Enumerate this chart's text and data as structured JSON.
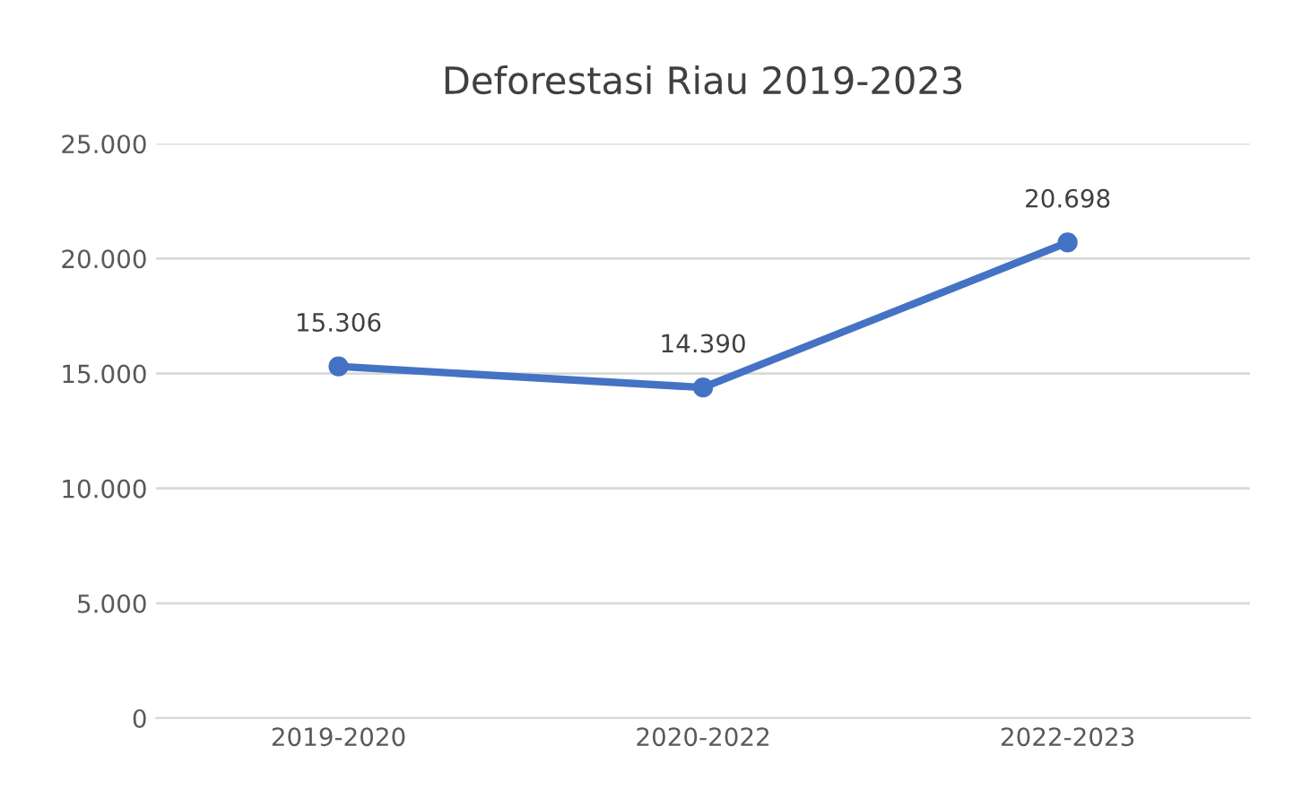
{
  "chart_data": {
    "type": "line",
    "title": "Deforestasi Riau 2019-2023",
    "categories": [
      "2019-2020",
      "2020-2022",
      "2022-2023"
    ],
    "series": [
      {
        "color": "#4472c4",
        "values": [
          15306,
          14390,
          20698
        ],
        "value_labels": [
          "15.306",
          "14.390",
          "20.698"
        ]
      }
    ],
    "ylim": [
      0,
      25000
    ],
    "yticks": [
      {
        "value": 0,
        "label": "0"
      },
      {
        "value": 5000,
        "label": "5.000"
      },
      {
        "value": 10000,
        "label": "10.000"
      },
      {
        "value": 15000,
        "label": "15.000"
      },
      {
        "value": 20000,
        "label": "20.000"
      },
      {
        "value": 25000,
        "label": "25.000"
      }
    ],
    "grid": "y",
    "marker": "circle",
    "line_style": "solid"
  }
}
